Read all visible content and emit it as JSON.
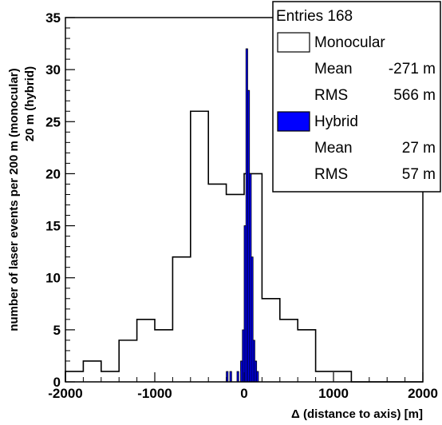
{
  "chart_data": {
    "type": "histogram",
    "xlabel": "Δ (distance to axis) [m]",
    "ylabel_lines": [
      "number of laser events per 200 m (monocular)",
      "20 m (hybrid)"
    ],
    "xlim": [
      -2000,
      2000
    ],
    "ylim": [
      0,
      35
    ],
    "x_ticks": [
      -2000,
      -1000,
      0,
      1000,
      2000
    ],
    "y_ticks": [
      0,
      5,
      10,
      15,
      20,
      25,
      30,
      35
    ],
    "grid": false,
    "legend_position": "top-right",
    "legend": {
      "entries_label": "Entries 168",
      "series": [
        {
          "name": "Monocular",
          "color": "#ffffff",
          "stats": [
            {
              "label": "Mean",
              "value": "-271 m"
            },
            {
              "label": "RMS",
              "value": "566 m"
            }
          ]
        },
        {
          "name": "Hybrid",
          "color": "#0000ff",
          "stats": [
            {
              "label": "Mean",
              "value": "27 m"
            },
            {
              "label": "RMS",
              "value": "57 m"
            }
          ]
        }
      ]
    },
    "series": [
      {
        "name": "Monocular",
        "fill": "#ffffff",
        "stroke": "#000000",
        "bin_width": 200,
        "bin_edges_start": -2000,
        "counts": [
          1,
          2,
          1,
          4,
          6,
          5,
          12,
          26,
          19,
          18,
          20,
          8,
          6,
          5,
          1,
          1,
          0,
          0,
          0,
          0
        ]
      },
      {
        "name": "Hybrid",
        "fill": "#0000ff",
        "stroke": "#000000",
        "bin_width": 20,
        "bins": [
          {
            "x": -200,
            "count": 1
          },
          {
            "x": -160,
            "count": 1
          },
          {
            "x": -80,
            "count": 1
          },
          {
            "x": -40,
            "count": 2
          },
          {
            "x": -20,
            "count": 5
          },
          {
            "x": 0,
            "count": 15
          },
          {
            "x": 20,
            "count": 32
          },
          {
            "x": 40,
            "count": 28
          },
          {
            "x": 60,
            "count": 20
          },
          {
            "x": 80,
            "count": 12
          },
          {
            "x": 100,
            "count": 4
          },
          {
            "x": 120,
            "count": 2
          },
          {
            "x": 140,
            "count": 1
          }
        ]
      }
    ]
  }
}
